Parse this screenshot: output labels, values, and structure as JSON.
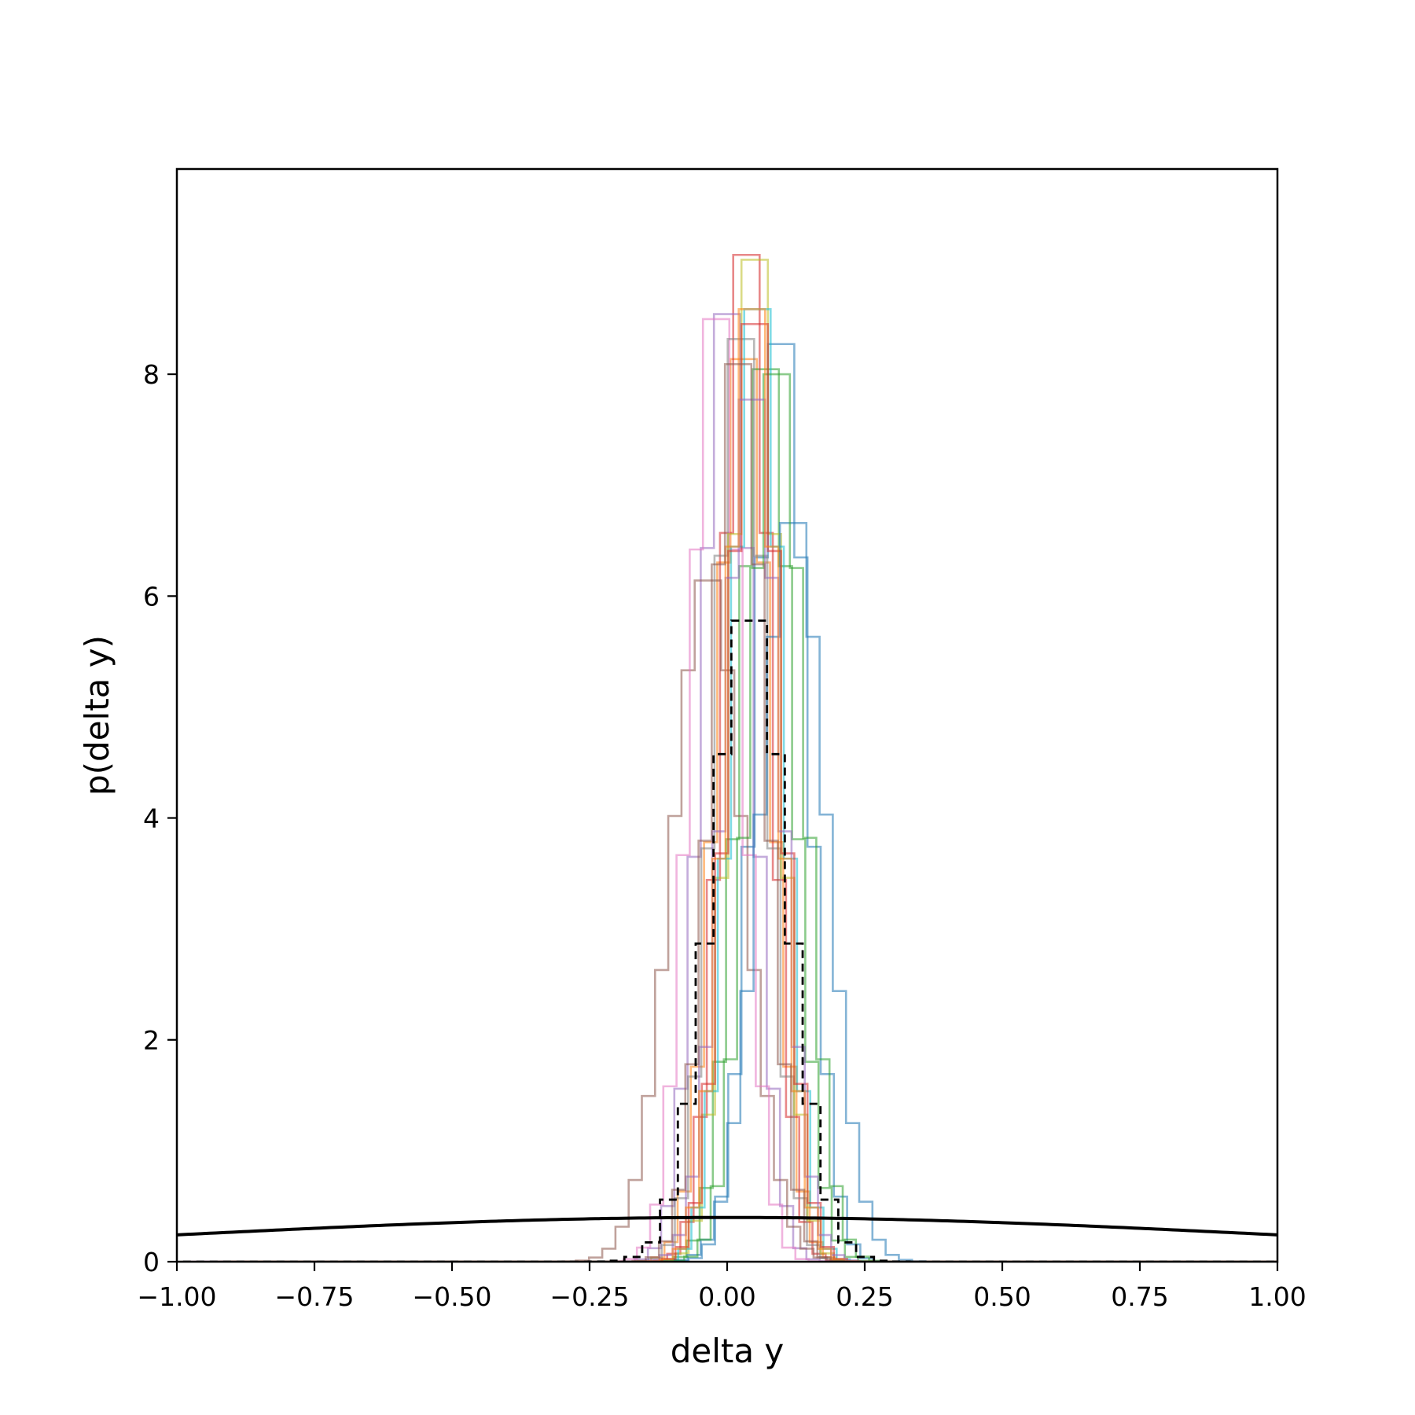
{
  "chart_data": {
    "type": "histogram",
    "xlabel": "delta y",
    "ylabel": "p(delta y)",
    "xlim": [
      -1.0,
      1.0
    ],
    "ylim": [
      0,
      9.85
    ],
    "x_ticks": [
      -1.0,
      -0.75,
      -0.5,
      -0.25,
      0.0,
      0.25,
      0.5,
      0.75,
      1.0
    ],
    "x_tick_labels": [
      "−1.00",
      "−0.75",
      "−0.50",
      "−0.25",
      "0.00",
      "0.25",
      "0.50",
      "0.75",
      "1.00"
    ],
    "y_ticks": [
      0,
      2,
      4,
      6,
      8
    ],
    "y_tick_labels": [
      "0",
      "2",
      "4",
      "6",
      "8"
    ],
    "grid": false,
    "legend": "none",
    "bin_width": 0.024,
    "series": [
      {
        "color": "#1f77b4",
        "mean": 0.098,
        "peak": 8.55
      },
      {
        "color": "#ff7f0e",
        "mean": 0.03,
        "peak": 8.4
      },
      {
        "color": "#2ca02c",
        "mean": 0.07,
        "peak": 8.3
      },
      {
        "color": "#d62728",
        "mean": 0.035,
        "peak": 9.45
      },
      {
        "color": "#9467bd",
        "mean": 0.0,
        "peak": 8.85
      },
      {
        "color": "#8c564b",
        "mean": -0.035,
        "peak": 6.25
      },
      {
        "color": "#e377c2",
        "mean": -0.02,
        "peak": 8.8
      },
      {
        "color": "#7f7f7f",
        "mean": 0.025,
        "peak": 8.6
      },
      {
        "color": "#bcbd22",
        "mean": 0.05,
        "peak": 9.4
      },
      {
        "color": "#17becf",
        "mean": 0.055,
        "peak": 8.9
      },
      {
        "color": "#1f77b4",
        "mean": 0.12,
        "peak": 6.8
      },
      {
        "color": "#2ca02c",
        "mean": 0.09,
        "peak": 8.25
      },
      {
        "color": "#d62728",
        "mean": 0.05,
        "peak": 8.75
      },
      {
        "color": "#9467bd",
        "mean": 0.045,
        "peak": 8.0
      },
      {
        "color": "#ff7f0e",
        "mean": 0.045,
        "peak": 8.9
      },
      {
        "color": "#8c564b",
        "mean": 0.02,
        "peak": 8.35
      }
    ],
    "aggregate_histogram": {
      "style": "dashed",
      "color": "#000000",
      "mean": 0.04,
      "peak": 5.95
    },
    "reference_curve": {
      "type": "normal-density",
      "mean": 0.0,
      "std": 1.0,
      "color": "#000000"
    }
  }
}
